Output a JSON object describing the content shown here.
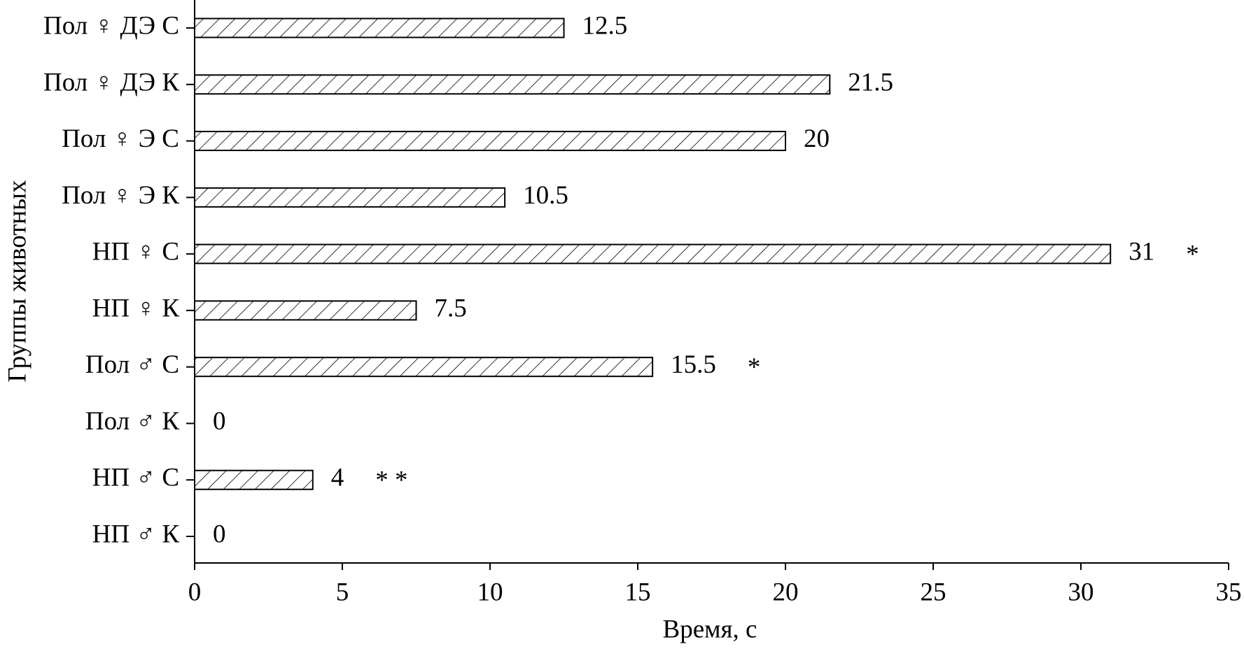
{
  "chart_data": {
    "type": "hbar",
    "x_label": "Время, с",
    "y_label": "Группы животных",
    "categories": [
      "НП ♂ К",
      "НП ♂ С",
      "Пол ♂ К",
      "Пол ♂ С",
      "НП ♀ К",
      "НП ♀ С",
      "Пол ♀ Э К",
      "Пол ♀ Э С",
      "Пол ♀ ДЭ К",
      "Пол ♀ ДЭ С"
    ],
    "values": [
      0,
      4,
      0,
      15.5,
      7.5,
      31,
      10.5,
      20,
      21.5,
      12.5
    ],
    "significance": [
      null,
      "* *",
      null,
      "*",
      null,
      "*",
      null,
      null,
      null,
      null
    ],
    "color": "#000000",
    "xlim": [
      0,
      35
    ],
    "xticks": [
      0,
      5,
      10,
      15,
      20,
      25,
      30,
      35
    ]
  }
}
